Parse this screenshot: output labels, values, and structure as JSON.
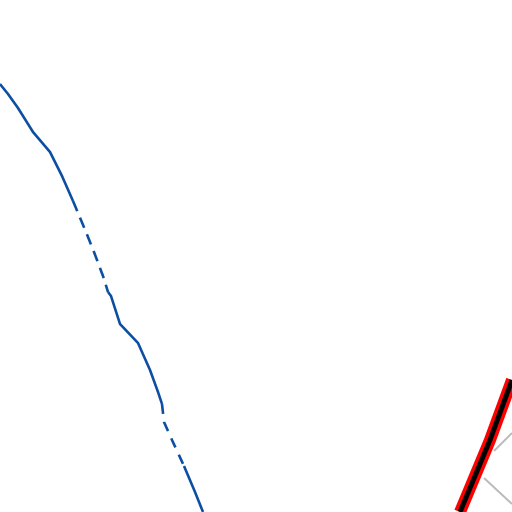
{
  "map": {
    "background_color": "#ffffff",
    "features": {
      "boundary_line": {
        "kind": "administrative-boundary",
        "color": "#0b4ea2",
        "style": "solid-with-dashed-segments"
      },
      "highway": {
        "kind": "major-road",
        "casing_color": "#ff0000",
        "core_color": "#000000"
      },
      "minor_roads": {
        "kind": "minor-road",
        "color": "#bbbbbb"
      }
    }
  }
}
